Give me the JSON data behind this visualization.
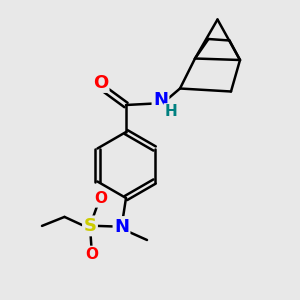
{
  "bg_color": "#e8e8e8",
  "bond_color": "#000000",
  "bond_width": 1.8,
  "atom_colors": {
    "O": "#ff0000",
    "N": "#0000ff",
    "H": "#008080",
    "S": "#cccc00"
  },
  "font_size_large": 13,
  "font_size_small": 11,
  "xlim": [
    0,
    10
  ],
  "ylim": [
    0,
    10
  ]
}
